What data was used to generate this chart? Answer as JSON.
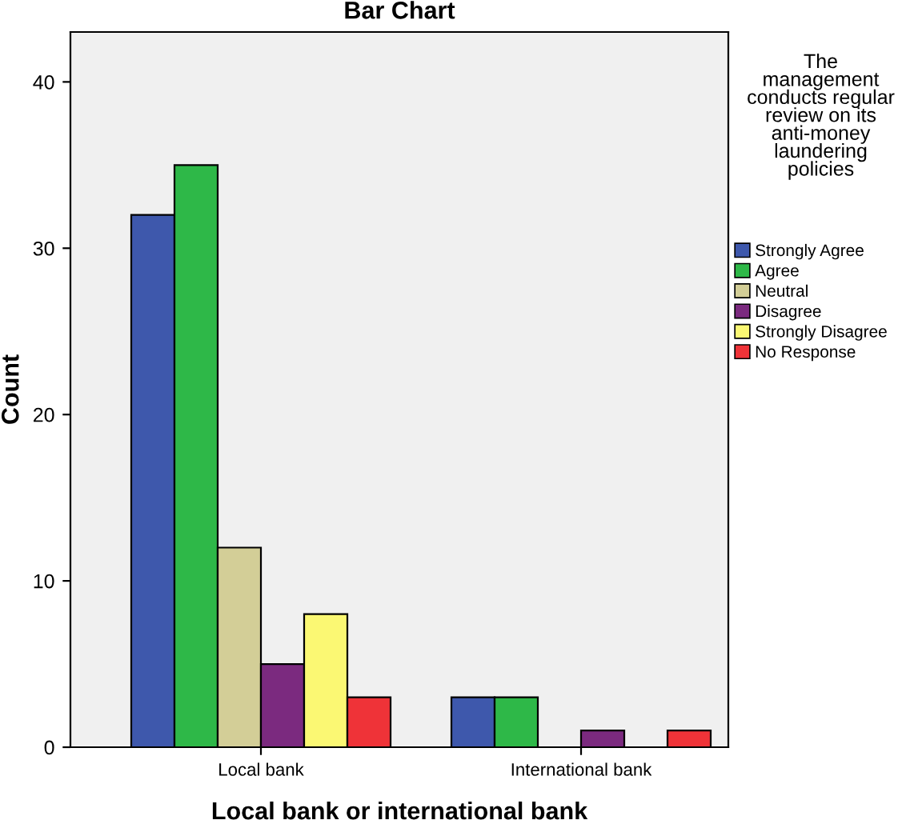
{
  "chart_data": {
    "type": "bar",
    "title": "Bar Chart",
    "xlabel": "Local bank or international bank",
    "ylabel": "Count",
    "legend_title": "The management conducts regular review on its anti-money laundering policies",
    "categories": [
      "Local bank",
      "International bank"
    ],
    "series": [
      {
        "name": "Strongly Agree",
        "color": "#3e58ac",
        "values": [
          32,
          3
        ]
      },
      {
        "name": "Agree",
        "color": "#2eb848",
        "values": [
          35,
          3
        ]
      },
      {
        "name": "Neutral",
        "color": "#d3ce97",
        "values": [
          12,
          null
        ]
      },
      {
        "name": "Disagree",
        "color": "#7b2a7f",
        "values": [
          5,
          1
        ]
      },
      {
        "name": "Strongly Disagree",
        "color": "#fbf873",
        "values": [
          8,
          null
        ]
      },
      {
        "name": "No Response",
        "color": "#ef3338",
        "values": [
          3,
          1
        ]
      }
    ],
    "ylim": [
      0,
      43
    ],
    "yticks": [
      0,
      10,
      20,
      30,
      40
    ],
    "grid": false,
    "legend": "right"
  }
}
